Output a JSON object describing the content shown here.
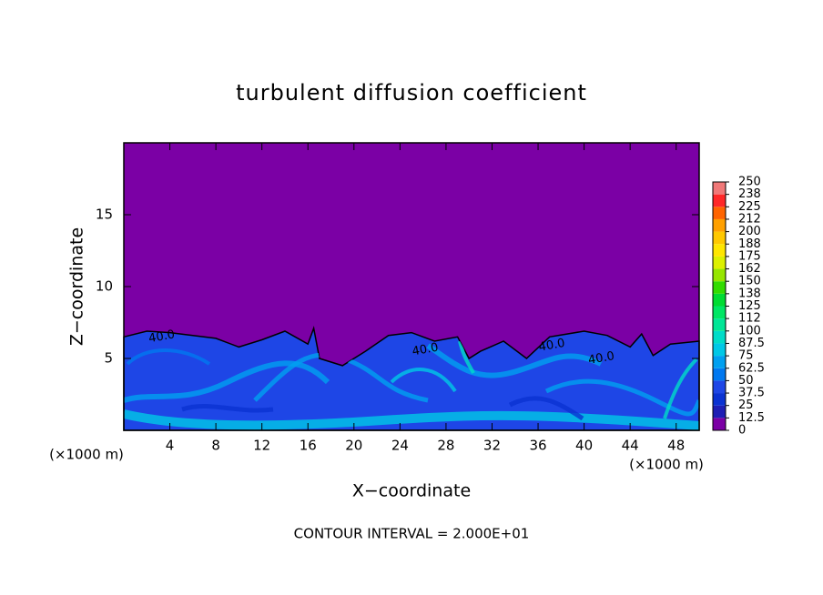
{
  "chart_data": {
    "type": "contour",
    "title": "turbulent diffusion coefficient",
    "xlabel": "X−coordinate",
    "ylabel": "Z−coordinate",
    "xunit_left": "(×1000 m)",
    "xunit_right": "(×1000 m)",
    "footer": "CONTOUR INTERVAL = 2.000E+01",
    "xlim": [
      0,
      50
    ],
    "xticks": [
      4,
      8,
      12,
      16,
      20,
      24,
      28,
      32,
      36,
      40,
      44,
      48
    ],
    "ylim": [
      0,
      20
    ],
    "yticks": [
      5,
      10,
      15
    ],
    "colorbar": {
      "levels": [
        0,
        12.5,
        25,
        37.5,
        50,
        62.5,
        75,
        87.5,
        100,
        {
          "value": 112.5,
          "label": "112"
        },
        125,
        {
          "value": 137.5,
          "label": "138"
        },
        150,
        {
          "value": 162.5,
          "label": "162"
        },
        175,
        {
          "value": 187.5,
          "label": "188"
        },
        200,
        {
          "value": 212.5,
          "label": "212"
        },
        225,
        {
          "value": 237.5,
          "label": "238"
        },
        250
      ],
      "colors": [
        "#7b00a5",
        "#1e1eb4",
        "#0a32d2",
        "#1e46e6",
        "#0078f0",
        "#00a0f0",
        "#00c8e6",
        "#00dcc8",
        "#00e696",
        "#00e664",
        "#00dc32",
        "#32dc00",
        "#96e600",
        "#dcf000",
        "#ffe600",
        "#ffc800",
        "#ffa000",
        "#ff6400",
        "#ff2828",
        "#f07878"
      ]
    },
    "layer_top": {
      "x": [
        0,
        2,
        4,
        8,
        10,
        12,
        14,
        16,
        16.5,
        17,
        19,
        21,
        23,
        25,
        27,
        29,
        30,
        31,
        33,
        35,
        37,
        40,
        42,
        44,
        45,
        46,
        47.5,
        50
      ],
      "y": [
        6.5,
        6.9,
        6.8,
        6.4,
        5.8,
        6.3,
        6.9,
        6.0,
        7.1,
        5.0,
        4.5,
        5.5,
        6.6,
        6.8,
        6.2,
        6.5,
        5.0,
        5.5,
        6.2,
        5.0,
        6.5,
        6.9,
        6.6,
        5.8,
        6.7,
        5.2,
        6.0,
        6.2
      ]
    },
    "contour_labels": [
      {
        "value": 40,
        "label": "40.0",
        "x": 3.3,
        "y": 6.5
      },
      {
        "value": 40,
        "label": "40.0",
        "x": 26.2,
        "y": 5.6
      },
      {
        "value": 40,
        "label": "40.0",
        "x": 37.2,
        "y": 5.9
      },
      {
        "value": 40,
        "label": "40.0",
        "x": 41.5,
        "y": 5.0
      }
    ]
  }
}
